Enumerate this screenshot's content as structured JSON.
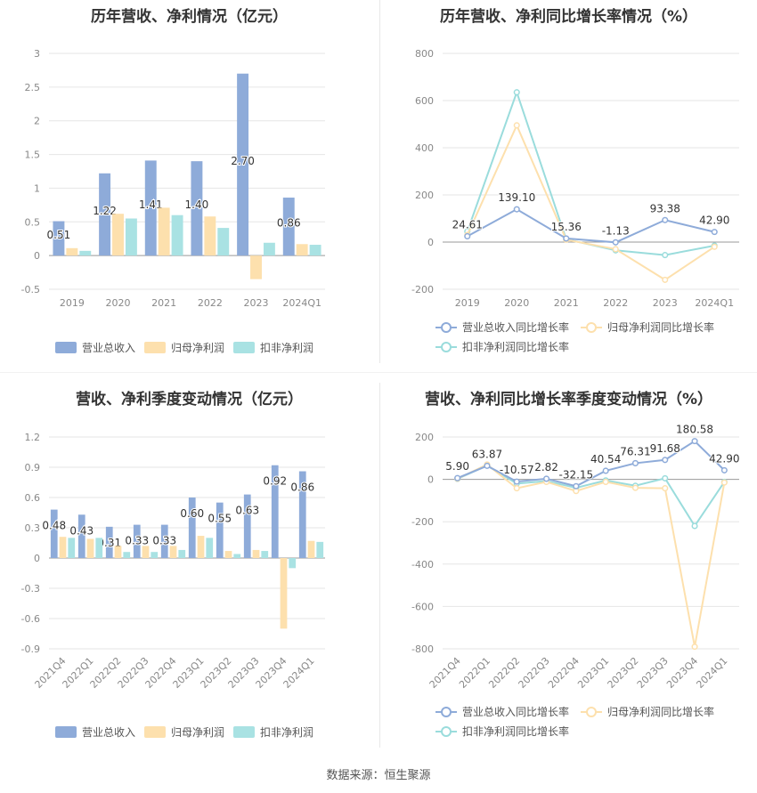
{
  "colors": {
    "revenue": "#8eabd9",
    "net_profit": "#fde0ad",
    "deducted_profit": "#a9e2e3",
    "revenue_line": "#8eabd9",
    "net_line": "#fde0ad",
    "deducted_line": "#9adcdc",
    "grid": "#e6e6e6",
    "axis_text": "#888888",
    "label_text": "#333333"
  },
  "source": "数据来源：恒生聚源",
  "chart_data": [
    {
      "type": "bar",
      "title": "历年营收、净利情况（亿元）",
      "categories": [
        "2019",
        "2020",
        "2021",
        "2022",
        "2023",
        "2024Q1"
      ],
      "ylim": [
        -0.5,
        3
      ],
      "yticks": [
        -0.5,
        0,
        0.5,
        1,
        1.5,
        2,
        2.5,
        3
      ],
      "grid": true,
      "legend_position": "bottom",
      "series": [
        {
          "name": "营业总收入",
          "values": [
            0.51,
            1.22,
            1.41,
            1.4,
            2.7,
            0.86
          ],
          "labels": [
            "0.51",
            "1.22",
            "1.41",
            "1.40",
            "2.70",
            "0.86"
          ]
        },
        {
          "name": "归母净利润",
          "values": [
            0.11,
            0.62,
            0.71,
            0.58,
            -0.35,
            0.17
          ]
        },
        {
          "name": "扣非净利润",
          "values": [
            0.07,
            0.55,
            0.6,
            0.41,
            0.19,
            0.16
          ]
        }
      ]
    },
    {
      "type": "line",
      "title": "历年营收、净利同比增长率情况（%）",
      "categories": [
        "2019",
        "2020",
        "2021",
        "2022",
        "2023",
        "2024Q1"
      ],
      "ylim": [
        -200,
        800
      ],
      "yticks": [
        -200,
        0,
        200,
        400,
        600,
        800
      ],
      "grid": true,
      "legend_position": "bottom",
      "series": [
        {
          "name": "营业总收入同比增长率",
          "values": [
            24.61,
            139.1,
            15.36,
            -1.13,
            93.38,
            42.9
          ],
          "labels": [
            "24.61",
            "139.10",
            "15.36",
            "-1.13",
            "93.38",
            "42.90"
          ]
        },
        {
          "name": "归母净利润同比增长率",
          "values": [
            30,
            495,
            10,
            -30,
            -160,
            -20
          ]
        },
        {
          "name": "扣非净利润同比增长率",
          "values": [
            45,
            635,
            12,
            -35,
            -55,
            -15
          ]
        }
      ]
    },
    {
      "type": "bar",
      "title": "营收、净利季度变动情况（亿元）",
      "categories": [
        "2021Q4",
        "2022Q1",
        "2022Q2",
        "2022Q3",
        "2022Q4",
        "2023Q1",
        "2023Q2",
        "2023Q3",
        "2023Q4",
        "2024Q1"
      ],
      "ylim": [
        -0.9,
        1.2
      ],
      "yticks": [
        -0.9,
        -0.6,
        -0.3,
        0,
        0.3,
        0.6,
        0.9,
        1.2
      ],
      "grid": true,
      "legend_position": "bottom",
      "series": [
        {
          "name": "营业总收入",
          "values": [
            0.48,
            0.43,
            0.31,
            0.33,
            0.33,
            0.6,
            0.55,
            0.63,
            0.92,
            0.86
          ],
          "labels": [
            "0.48",
            "0.43",
            "0.31",
            "0.33",
            "0.33",
            "0.60",
            "0.55",
            "0.63",
            "0.92",
            "0.86"
          ]
        },
        {
          "name": "归母净利润",
          "values": [
            0.21,
            0.19,
            0.12,
            0.12,
            0.12,
            0.22,
            0.07,
            0.08,
            -0.7,
            0.17
          ]
        },
        {
          "name": "扣非净利润",
          "values": [
            0.2,
            0.2,
            0.06,
            0.06,
            0.08,
            0.2,
            0.04,
            0.07,
            -0.1,
            0.16
          ]
        }
      ]
    },
    {
      "type": "line",
      "title": "营收、净利同比增长率季度变动情况（%）",
      "categories": [
        "2021Q4",
        "2022Q1",
        "2022Q2",
        "2022Q3",
        "2022Q4",
        "2023Q1",
        "2023Q2",
        "2023Q3",
        "2023Q4",
        "2024Q1"
      ],
      "ylim": [
        -800,
        200
      ],
      "yticks": [
        -800,
        -600,
        -400,
        -200,
        0,
        200
      ],
      "grid": true,
      "legend_position": "bottom",
      "series": [
        {
          "name": "营业总收入同比增长率",
          "values": [
            5.9,
            63.87,
            -10.57,
            2.82,
            -32.15,
            40.54,
            76.31,
            91.68,
            180.58,
            42.9
          ],
          "labels": [
            "5.90",
            "63.87",
            "-10.57",
            "2.82",
            "-32.15",
            "40.54",
            "76.31",
            "91.68",
            "180.58",
            "42.90"
          ]
        },
        {
          "name": "归母净利润同比增长率",
          "values": [
            3,
            70,
            -42,
            -12,
            -55,
            -12,
            -40,
            -42,
            -790,
            -15
          ]
        },
        {
          "name": "扣非净利润同比增长率",
          "values": [
            2,
            65,
            -20,
            -8,
            -40,
            -5,
            -30,
            5,
            -220,
            -12
          ]
        }
      ]
    }
  ]
}
